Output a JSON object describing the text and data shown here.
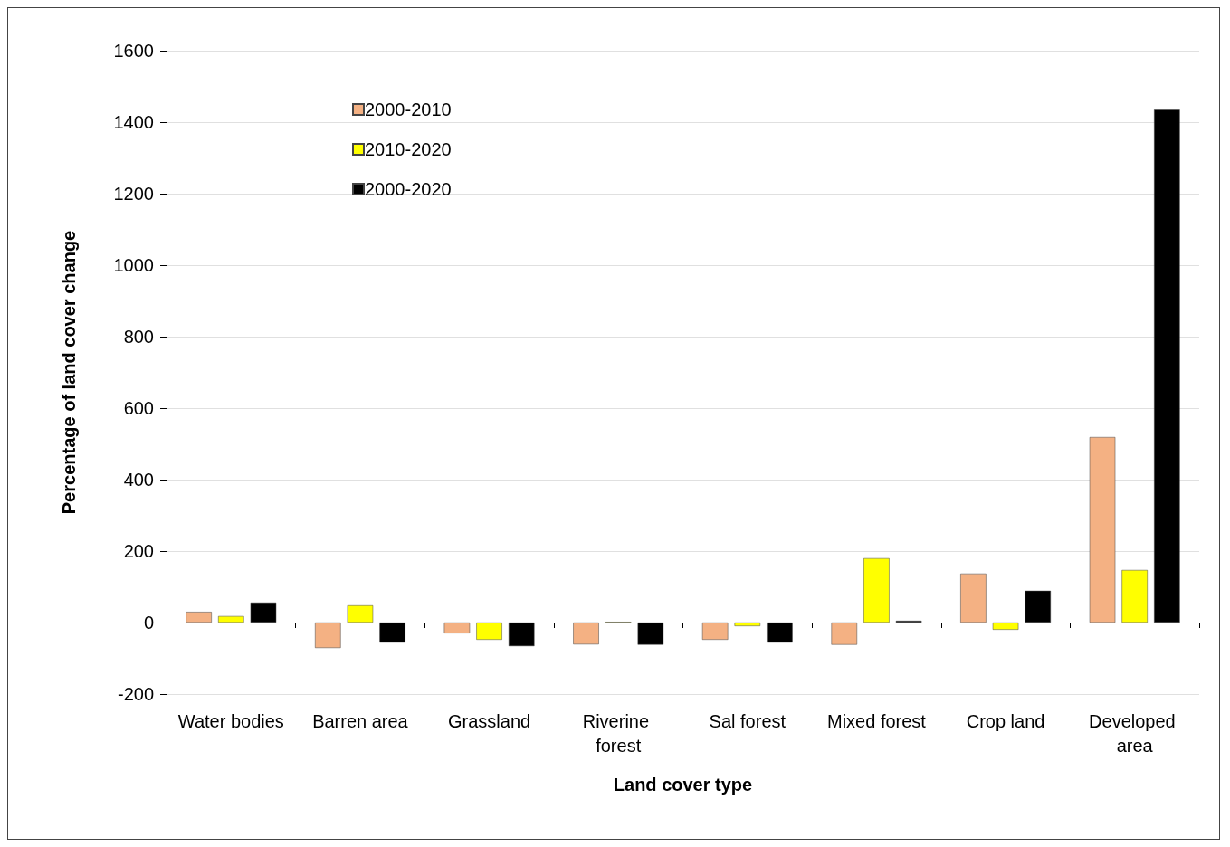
{
  "chart_data": {
    "type": "bar",
    "xlabel": "Land cover type",
    "ylabel": "Percentage of land cover change",
    "categories": [
      "Water bodies",
      "Barren area",
      "Grassland",
      "Riverine forest",
      "Sal forest",
      "Mixed forest",
      "Crop land",
      "Developed area"
    ],
    "series": [
      {
        "name": "2000-2010",
        "color": "#f4b183",
        "values": [
          30,
          -71,
          -30,
          -61,
          -48,
          -62,
          137,
          519
        ]
      },
      {
        "name": "2010-2020",
        "color": "#ffff00",
        "values": [
          18,
          48,
          -48,
          2,
          -10,
          180,
          -20,
          147
        ]
      },
      {
        "name": "2000-2020",
        "color": "#000000",
        "values": [
          56,
          -56,
          -66,
          -62,
          -56,
          5,
          89,
          1435
        ]
      }
    ],
    "ylim": [
      -200,
      1600
    ],
    "yticks": [
      -200,
      0,
      200,
      400,
      600,
      800,
      1000,
      1200,
      1400,
      1600
    ],
    "grid": "y",
    "legend": "top left"
  }
}
